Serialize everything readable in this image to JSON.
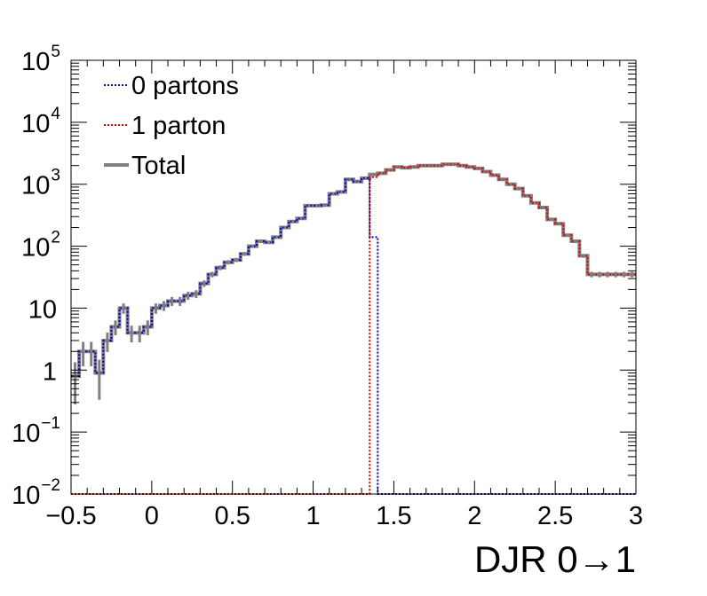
{
  "chart_data": {
    "type": "line",
    "title": "",
    "xlabel": "DJR 0→1",
    "ylabel": "",
    "xlim": [
      -0.5,
      3.0
    ],
    "ylim": [
      0.01,
      100000
    ],
    "y_scale": "log",
    "grid": false,
    "legend_position": "top-left",
    "x_ticks": [
      "−0.5",
      "0",
      "0.5",
      "1",
      "1.5",
      "2",
      "2.5",
      "3"
    ],
    "y_ticks": [
      {
        "value": 0.01,
        "base": "10",
        "exp": "−2"
      },
      {
        "value": 0.1,
        "base": "10",
        "exp": "−1"
      },
      {
        "value": 1,
        "base": "1",
        "exp": ""
      },
      {
        "value": 10,
        "base": "10",
        "exp": ""
      },
      {
        "value": 100,
        "base": "10",
        "exp": "2"
      },
      {
        "value": 1000,
        "base": "10",
        "exp": "3"
      },
      {
        "value": 10000,
        "base": "10",
        "exp": "4"
      },
      {
        "value": 100000,
        "base": "10",
        "exp": "5"
      }
    ],
    "x_bins": [
      -0.475,
      -0.425,
      -0.375,
      -0.325,
      -0.275,
      -0.225,
      -0.175,
      -0.125,
      -0.075,
      -0.025,
      0.025,
      0.075,
      0.125,
      0.175,
      0.225,
      0.275,
      0.325,
      0.375,
      0.425,
      0.475,
      0.525,
      0.575,
      0.625,
      0.675,
      0.725,
      0.775,
      0.825,
      0.875,
      0.925,
      0.975,
      1.025,
      1.075,
      1.125,
      1.175,
      1.225,
      1.275,
      1.325,
      1.375,
      1.425,
      1.475,
      1.525,
      1.575,
      1.625,
      1.675,
      1.725,
      1.775,
      1.825,
      1.875,
      1.925,
      1.975,
      2.025,
      2.075,
      2.125,
      2.175,
      2.225,
      2.275,
      2.325,
      2.375,
      2.425,
      2.475,
      2.525,
      2.575,
      2.625,
      2.675,
      2.725,
      2.775,
      2.825,
      2.875,
      2.925,
      2.975
    ],
    "series": [
      {
        "name": "0 partons",
        "color": "#0000cc",
        "line_style": "dotted",
        "values": [
          0.8,
          2,
          2,
          0.9,
          3,
          5,
          10,
          4,
          4,
          5,
          10,
          11,
          13,
          13,
          16,
          17,
          25,
          35,
          45,
          55,
          60,
          75,
          100,
          120,
          115,
          140,
          200,
          250,
          280,
          450,
          450,
          460,
          700,
          750,
          1200,
          1100,
          1250,
          140,
          0.01,
          0.01,
          0.01,
          0.01,
          0.01,
          0.01,
          0.01,
          0.01,
          0.01,
          0.01,
          0.01,
          0.01,
          0.01,
          0.01,
          0.01,
          0.01,
          0.01,
          0.01,
          0.01,
          0.01,
          0.01,
          0.01,
          0.01,
          0.01,
          0.01,
          0.01,
          0.01,
          0.01,
          0.01,
          0.01,
          0.01,
          0.01
        ]
      },
      {
        "name": "1 parton",
        "color": "#dd0000",
        "line_style": "dotted",
        "values": [
          0.01,
          0.01,
          0.01,
          0.01,
          0.01,
          0.01,
          0.01,
          0.01,
          0.01,
          0.01,
          0.01,
          0.01,
          0.01,
          0.01,
          0.01,
          0.01,
          0.01,
          0.01,
          0.01,
          0.01,
          0.01,
          0.01,
          0.01,
          0.01,
          0.01,
          0.01,
          0.01,
          0.01,
          0.01,
          0.01,
          0.01,
          0.01,
          0.01,
          0.01,
          0.01,
          0.01,
          0.01,
          1300,
          1500,
          1700,
          1900,
          1850,
          1900,
          2000,
          2000,
          2000,
          2100,
          2100,
          2000,
          1900,
          1800,
          1600,
          1400,
          1200,
          1000,
          850,
          650,
          500,
          420,
          270,
          230,
          150,
          120,
          70,
          35,
          35,
          35,
          35,
          35,
          35
        ]
      },
      {
        "name": "Total",
        "color": "#808080",
        "line_style": "solid",
        "values": [
          0.8,
          2,
          2,
          0.9,
          3,
          5,
          10,
          4,
          4,
          5,
          10,
          11,
          13,
          13,
          16,
          17,
          25,
          35,
          45,
          55,
          60,
          75,
          100,
          120,
          115,
          140,
          200,
          250,
          280,
          450,
          450,
          460,
          700,
          750,
          1200,
          1100,
          1250,
          1440,
          1500,
          1700,
          1900,
          1850,
          1900,
          2000,
          2000,
          2000,
          2100,
          2100,
          2000,
          1900,
          1800,
          1600,
          1400,
          1200,
          1000,
          850,
          650,
          500,
          420,
          270,
          230,
          150,
          120,
          70,
          35,
          35,
          35,
          35,
          35,
          35
        ]
      }
    ]
  }
}
